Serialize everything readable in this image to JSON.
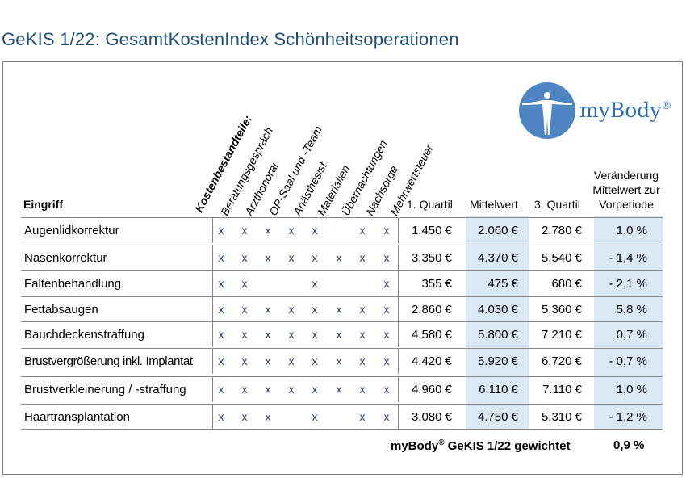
{
  "title": "GeKIS 1/22: GesamtKostenIndex Schönheitsoperationen",
  "logo": {
    "brand": "myBody",
    "reg": "®"
  },
  "colors": {
    "title": "#1f4f7a",
    "shade": "#dbe9f7",
    "logo": "#2f6db3",
    "x_mark": "#2a3b6b"
  },
  "header": {
    "eingriff": "Eingriff",
    "components_label": "Kostenbestandteile:",
    "components": [
      "Beratungsgespräch",
      "Arzthonorar",
      "OP-Saal und -Team",
      "Anästhesist",
      "Materialien",
      "Übernachtungen",
      "Nachsorge",
      "Mehrwertsteuer"
    ],
    "q1": "1. Quartil",
    "mittel": "Mittelwert",
    "q3": "3. Quartil",
    "change_l1": "Veränderung",
    "change_l2": "Mittelwert zur",
    "change_l3": "Vorperiode"
  },
  "rows": [
    {
      "name": "Augenlidkorrektur",
      "marks": [
        "x",
        "x",
        "x",
        "x",
        "x",
        "",
        "x",
        "x"
      ],
      "q1": "1.450 €",
      "mean": "2.060 €",
      "q3": "2.780 €",
      "change": "1,0 %"
    },
    {
      "name": "Nasenkorrektur",
      "marks": [
        "x",
        "x",
        "x",
        "x",
        "x",
        "x",
        "x",
        "x"
      ],
      "q1": "3.350 €",
      "mean": "4.370 €",
      "q3": "5.540 €",
      "change": "- 1,4 %"
    },
    {
      "name": "Faltenbehandlung",
      "marks": [
        "x",
        "x",
        "",
        "",
        "x",
        "",
        "",
        "x"
      ],
      "q1": "355 €",
      "mean": "475 €",
      "q3": "680 €",
      "change": "- 2,1 %"
    },
    {
      "name": "Fettabsaugen",
      "marks": [
        "x",
        "x",
        "x",
        "x",
        "x",
        "x",
        "x",
        "x"
      ],
      "q1": "2.860 €",
      "mean": "4.030 €",
      "q3": "5.360 €",
      "change": "5,8 %"
    },
    {
      "name": "Bauchdeckenstraffung",
      "marks": [
        "x",
        "x",
        "x",
        "x",
        "x",
        "x",
        "x",
        "x"
      ],
      "q1": "4.580 €",
      "mean": "5.800 €",
      "q3": "7.210 €",
      "change": "0,7 %"
    },
    {
      "name": "Brustvergrößerung inkl. Implantat",
      "marks": [
        "x",
        "x",
        "x",
        "x",
        "x",
        "x",
        "x",
        "x"
      ],
      "q1": "4.420 €",
      "mean": "5.920 €",
      "q3": "6.720 €",
      "change": "- 0,7 %"
    },
    {
      "name": "Brustverkleinerung / -straffung",
      "marks": [
        "x",
        "x",
        "x",
        "x",
        "x",
        "x",
        "x",
        "x"
      ],
      "q1": "4.960 €",
      "mean": "6.110 €",
      "q3": "7.110 €",
      "change": "1,0 %"
    },
    {
      "name": "Haartransplantation",
      "marks": [
        "x",
        "x",
        "x",
        "",
        "x",
        "",
        "x",
        "x"
      ],
      "q1": "3.080 €",
      "mean": "4.750 €",
      "q3": "5.310 €",
      "change": "- 1,2 %"
    }
  ],
  "footer": {
    "brand": "myBody",
    "reg": "®",
    "text": "GeKIS 1/22 gewichtet",
    "value": "0,9 %"
  }
}
